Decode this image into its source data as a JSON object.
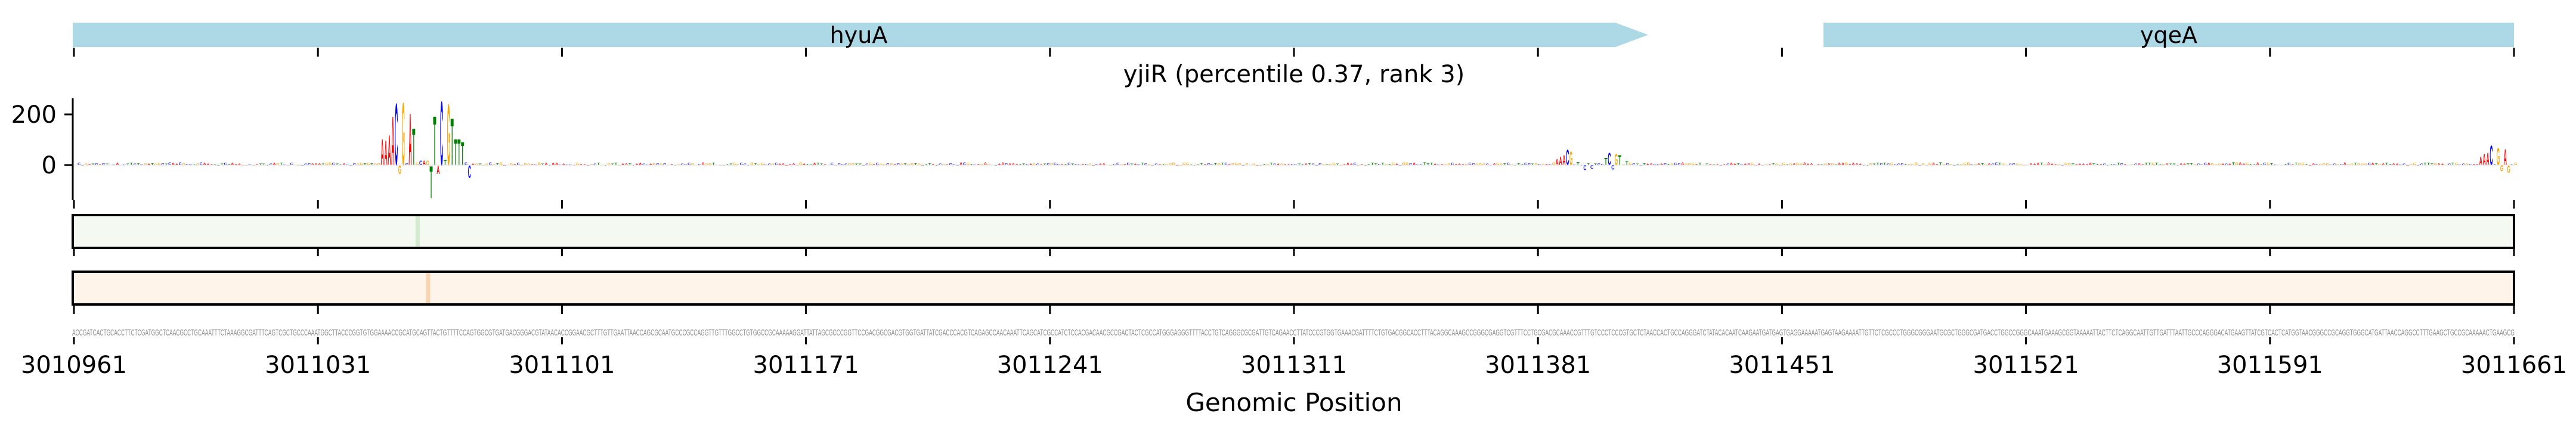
{
  "genes": [
    {
      "name": "hyuA",
      "start": 3010961,
      "end": 3011453,
      "strand": "+",
      "color": "#add8e6"
    },
    {
      "name": "yqeA",
      "start": 3011477,
      "end": 3011661,
      "strand": "+",
      "color": "#add8e6"
    }
  ],
  "chart_data": {
    "type": "sequence-logo",
    "title": "yjiR (percentile 0.37, rank 3)",
    "xlabel": "Genomic Position",
    "ylabel": "",
    "xlim": [
      3010961,
      3011661
    ],
    "x_ticks": [
      "3010961",
      "3011031",
      "3011101",
      "3011171",
      "3011241",
      "3011311",
      "3011381",
      "3011451",
      "3011521",
      "3011591",
      "3011661"
    ],
    "y_ticks": [
      "200",
      "0"
    ],
    "ylim": [
      -140,
      270
    ],
    "colors": {
      "A": "#ff0000",
      "C": "#0000ff",
      "G": "#ffa500",
      "T": "#008000"
    },
    "letters": [
      [
        88,
        "A",
        106
      ],
      [
        89,
        "A",
        101
      ],
      [
        90,
        "A",
        122
      ],
      [
        91,
        "A",
        200
      ],
      [
        92,
        "C",
        252
      ],
      [
        94,
        "G",
        255
      ],
      [
        96,
        "A",
        210
      ],
      [
        97,
        "T",
        150
      ],
      [
        99,
        "C",
        18
      ],
      [
        100,
        "A",
        18
      ],
      [
        101,
        "G",
        18
      ],
      [
        102,
        "T",
        -130
      ],
      [
        103,
        "T",
        200
      ],
      [
        104,
        "A",
        -35
      ],
      [
        105,
        "C",
        260
      ],
      [
        106,
        "T",
        20
      ],
      [
        107,
        "G",
        250
      ],
      [
        108,
        "T",
        190
      ],
      [
        109,
        "T",
        105
      ],
      [
        110,
        "T",
        105
      ],
      [
        111,
        "T",
        95
      ],
      [
        113,
        "C",
        -50
      ],
      [
        92.5,
        "G",
        -35
      ],
      [
        425,
        "A",
        25
      ],
      [
        426,
        "A",
        35
      ],
      [
        427,
        "A",
        40
      ],
      [
        428,
        "C",
        63
      ],
      [
        429,
        "G",
        55
      ],
      [
        431,
        "T",
        12
      ],
      [
        433,
        "C",
        -20
      ],
      [
        435,
        "C",
        -15
      ],
      [
        439,
        "T",
        30
      ],
      [
        440,
        "C",
        50
      ],
      [
        441,
        "C",
        -18
      ],
      [
        442,
        "G",
        45
      ],
      [
        443,
        "T",
        40
      ],
      [
        445,
        "T",
        15
      ],
      [
        690,
        "A",
        35
      ],
      [
        691,
        "A",
        45
      ],
      [
        692,
        "A",
        50
      ],
      [
        693,
        "C",
        80
      ],
      [
        695,
        "G",
        70
      ],
      [
        697,
        "A",
        65
      ],
      [
        696,
        "G",
        -25
      ],
      [
        698,
        "G",
        -30
      ]
    ],
    "tracks": [
      {
        "name": "track-1",
        "base_color": "#f4f9f1",
        "highlight_color": "#d5ebd0",
        "highlight_index": 98
      },
      {
        "name": "track-2",
        "base_color": "#fef4ea",
        "highlight_color": "#f8d5b0",
        "highlight_index": 101
      }
    ],
    "sequence": "ACCGATCACTGCACCTTCTCGATGGCTCAACGCCTGCAAATTTCTAAAGGCGATTTCAGTCGCTGCCCAAATGGCTTACCCGGTGTGGAAAACCGCATGCAGTTACTGTTTTCCAGTGGCGTGATGACGGGACGTATAACACCGGAACGCTTTGTTGAATTAACCAGCGCAATGCCCGCCAGGTTGTTTGGCCTGTGGCCGCAAAAAGGATTATTAGCGCCCGGTTCCGACGGCGACGTGGTGATTATCGACCCACGTCAGAGCCAACAAATTCAGCATCGCCATCTCCACGACAACGCCGACTACTCGCCATGGGAGGGTTTTACCTGTCAGGGCGCGATTGTCAGAACCTTATCCCGTGGTGAAACGATTTTCTGTGACGGCACCTTTACAGGCAAAGCCGGGCGAGGTCGTTTCCTGCGACGCAAACCGTTTGTCCCTCCCGTGCTCTAACCACTGCCAGGGATCTATACACAATCAAGAATGATGAGTGAGGAAAAATGAGTAAGAAAATTGTTCTCGCCCTGGGCGGGAATGCGCTGGGCGATGACCTGGCCGGGCAAATGAAAGCGGTAAAAATTACTTCTCAGGCAATTGTTGATTTAATTGCCCAGGGACATGAAGTTATCGTCACTCATGGTAACGGGCCGCAGGTGGGCATGATTAACCAGGCCTTTGAAGCTGCCGCAAAAACTGAAGCG"
  }
}
